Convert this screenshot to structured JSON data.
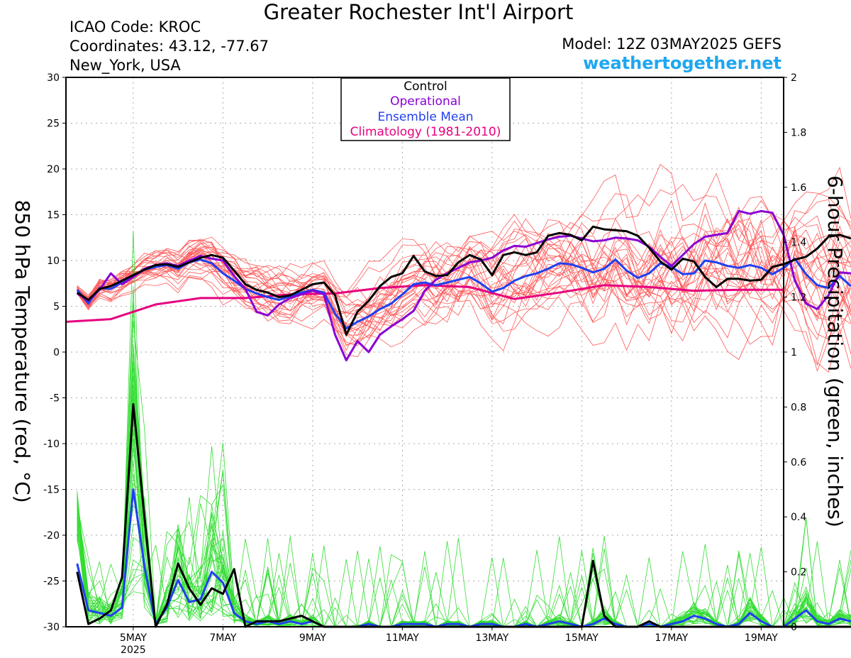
{
  "header": {
    "title": "Greater Rochester Int'l Airport",
    "icao": "ICAO Code: KROC",
    "coordinates": "Coordinates: 43.12, -77.67",
    "location": "New_York, USA",
    "model": "Model: 12Z 03MAY2025 GEFS",
    "website": "weathertogether.net"
  },
  "chart_data": {
    "type": "line",
    "xlabel": "",
    "x_tick_labels": [
      "5MAY",
      "7MAY",
      "9MAY",
      "11MAY",
      "13MAY",
      "15MAY",
      "17MAY",
      "19MAY"
    ],
    "x_tick_days": [
      5,
      7,
      9,
      11,
      13,
      15,
      17,
      19
    ],
    "year_label": "2025",
    "x_range_days": [
      3.5,
      19.5
    ],
    "time_step_days": 0.25,
    "x_start_day": 3.75,
    "ylabel_left": "850 hPa Temperature (red, °C)",
    "ylabel_right": "6-hour Precipitation (green, inches)",
    "ylim_left": [
      -30,
      30
    ],
    "yticks_left": [
      "30",
      "25",
      "20",
      "15",
      "10",
      "5",
      "0",
      "-5",
      "-10",
      "-15",
      "-20",
      "-25",
      "-30"
    ],
    "ylim_right": [
      0,
      2
    ],
    "yticks_right": [
      "2",
      "1.8",
      "1.6",
      "1.4",
      "1.2",
      "1",
      "0.8",
      "0.6",
      "0.4",
      "0.2",
      "0"
    ],
    "grid": true,
    "legend": {
      "position": "top-center",
      "entries": [
        {
          "label": "Control",
          "color": "#000000"
        },
        {
          "label": "Operational",
          "color": "#8a00d4"
        },
        {
          "label": "Ensemble Mean",
          "color": "#2040f0"
        },
        {
          "label": "Climatology (1981-2010)",
          "color": "#e6007e"
        }
      ]
    },
    "colors": {
      "members_temp": "#ff5a5a",
      "members_precip": "#33dd33",
      "control": "#000000",
      "operational": "#8a00d4",
      "mean": "#2040f0",
      "climatology": "#e6007e"
    },
    "series": [
      {
        "name": "Control",
        "variable": "temperature_c",
        "values": [
          6.5,
          5.7,
          6.9,
          7.2,
          7.8,
          8.4,
          9.0,
          9.5,
          9.6,
          9.3,
          9.8,
          10.3,
          10.6,
          10.3,
          8.9,
          7.4,
          6.8,
          6.5,
          6.0,
          6.2,
          6.8,
          7.4,
          7.6,
          6.2,
          1.9,
          4.4,
          5.6,
          7.2,
          8.2,
          8.6,
          10.5,
          8.8,
          8.3,
          8.4,
          9.8,
          10.6,
          10.1,
          8.4,
          10.6,
          10.9,
          10.6,
          10.9,
          12.7,
          13.0,
          12.8,
          12.2,
          13.7,
          13.4,
          13.3,
          13.2,
          12.7,
          11.4,
          9.9,
          9.0,
          10.2,
          9.9,
          8.2,
          7.1,
          8.0,
          8.0,
          7.8,
          7.9,
          9.3,
          9.6,
          10.1,
          10.4,
          11.3,
          12.6,
          12.8,
          12.4
        ]
      },
      {
        "name": "Operational",
        "variable": "temperature_c",
        "values": [
          6.4,
          5.6,
          6.8,
          8.6,
          7.4,
          8.2,
          9.1,
          9.5,
          9.7,
          9.4,
          10.0,
          10.5,
          10.2,
          10.0,
          8.3,
          6.9,
          4.4,
          4.0,
          5.2,
          5.9,
          6.3,
          6.7,
          6.3,
          1.9,
          -0.9,
          1.2,
          0.0,
          1.9,
          2.8,
          3.6,
          4.5,
          6.7,
          7.9,
          8.6,
          9.2,
          9.8,
          10.0,
          10.3,
          11.1,
          11.6,
          11.5,
          11.9,
          12.3,
          12.6,
          12.7,
          12.4,
          12.1,
          12.2,
          12.5,
          12.4,
          12.2,
          11.5,
          10.4,
          9.4,
          10.6,
          11.8,
          12.6,
          12.8,
          13.0,
          15.4,
          15.1,
          15.4,
          15.2,
          12.8,
          7.8,
          5.3,
          4.7,
          6.2,
          8.7,
          8.6
        ]
      },
      {
        "name": "Ensemble Mean",
        "variable": "temperature_c",
        "values": [
          6.8,
          5.3,
          7.0,
          6.9,
          7.6,
          8.3,
          9.0,
          9.3,
          9.5,
          9.1,
          9.8,
          10.1,
          9.7,
          8.6,
          7.8,
          6.9,
          6.4,
          6.0,
          5.7,
          6.1,
          6.5,
          6.8,
          6.5,
          4.2,
          2.6,
          3.3,
          3.9,
          4.7,
          5.3,
          6.3,
          7.4,
          7.6,
          7.3,
          7.6,
          7.9,
          8.2,
          7.5,
          6.6,
          7.0,
          7.8,
          8.3,
          8.6,
          9.1,
          9.7,
          9.6,
          9.2,
          8.7,
          9.1,
          10.1,
          8.9,
          8.1,
          8.6,
          9.7,
          9.3,
          8.5,
          8.6,
          10.0,
          9.8,
          9.4,
          9.2,
          9.5,
          9.2,
          8.5,
          9.2,
          10.2,
          8.5,
          7.3,
          7.0,
          8.3,
          7.2
        ]
      },
      {
        "name": "Climatology (1981-2010)",
        "variable": "temperature_c",
        "x_days": [
          3.5,
          4.5,
          5.5,
          6.5,
          7.5,
          8.5,
          9.5,
          10.5,
          11.5,
          12.5,
          13.5,
          14.5,
          15.5,
          16.5,
          17.5,
          18.5,
          19.5
        ],
        "values": [
          3.3,
          3.6,
          5.2,
          5.9,
          5.9,
          6.3,
          6.4,
          7.0,
          7.3,
          7.1,
          5.8,
          6.5,
          7.3,
          7.1,
          6.7,
          6.8,
          6.8
        ]
      },
      {
        "name": "Control",
        "variable": "precipitation_in",
        "values": [
          0.2,
          0.01,
          0.03,
          0.06,
          0.18,
          0.81,
          0.4,
          0.0,
          0.08,
          0.23,
          0.14,
          0.08,
          0.14,
          0.12,
          0.21,
          0.0,
          0.02,
          0.02,
          0.02,
          0.03,
          0.04,
          0.02,
          0.0,
          0.0,
          0.0,
          0.0,
          0.0,
          0.0,
          0.0,
          0.0,
          0.0,
          0.0,
          0.0,
          0.0,
          0.0,
          0.0,
          0.0,
          0.0,
          0.0,
          0.0,
          0.0,
          0.0,
          0.0,
          0.0,
          0.0,
          0.0,
          0.24,
          0.04,
          0.0,
          0.0,
          0.0,
          0.02,
          0.0,
          0.0,
          0.0,
          0.0,
          0.0,
          0.0,
          0.0,
          0.0,
          0.0,
          0.0,
          0.0,
          0.0,
          0.0,
          0.0,
          0.0,
          0.0,
          0.0,
          0.0
        ]
      },
      {
        "name": "Ensemble Mean",
        "variable": "precipitation_in",
        "values": [
          0.23,
          0.06,
          0.05,
          0.04,
          0.07,
          0.5,
          0.22,
          0.01,
          0.07,
          0.17,
          0.09,
          0.1,
          0.2,
          0.16,
          0.05,
          0.02,
          0.01,
          0.02,
          0.01,
          0.02,
          0.01,
          0.02,
          0.0,
          0.0,
          0.0,
          0.0,
          0.01,
          0.0,
          0.0,
          0.01,
          0.01,
          0.01,
          0.0,
          0.01,
          0.01,
          0.0,
          0.01,
          0.01,
          0.0,
          0.0,
          0.01,
          0.0,
          0.01,
          0.02,
          0.01,
          0.0,
          0.01,
          0.03,
          0.01,
          0.0,
          0.0,
          0.01,
          0.0,
          0.01,
          0.02,
          0.04,
          0.03,
          0.01,
          0.0,
          0.01,
          0.05,
          0.02,
          0.0,
          0.0,
          0.03,
          0.06,
          0.02,
          0.01,
          0.03,
          0.02
        ]
      }
    ]
  }
}
